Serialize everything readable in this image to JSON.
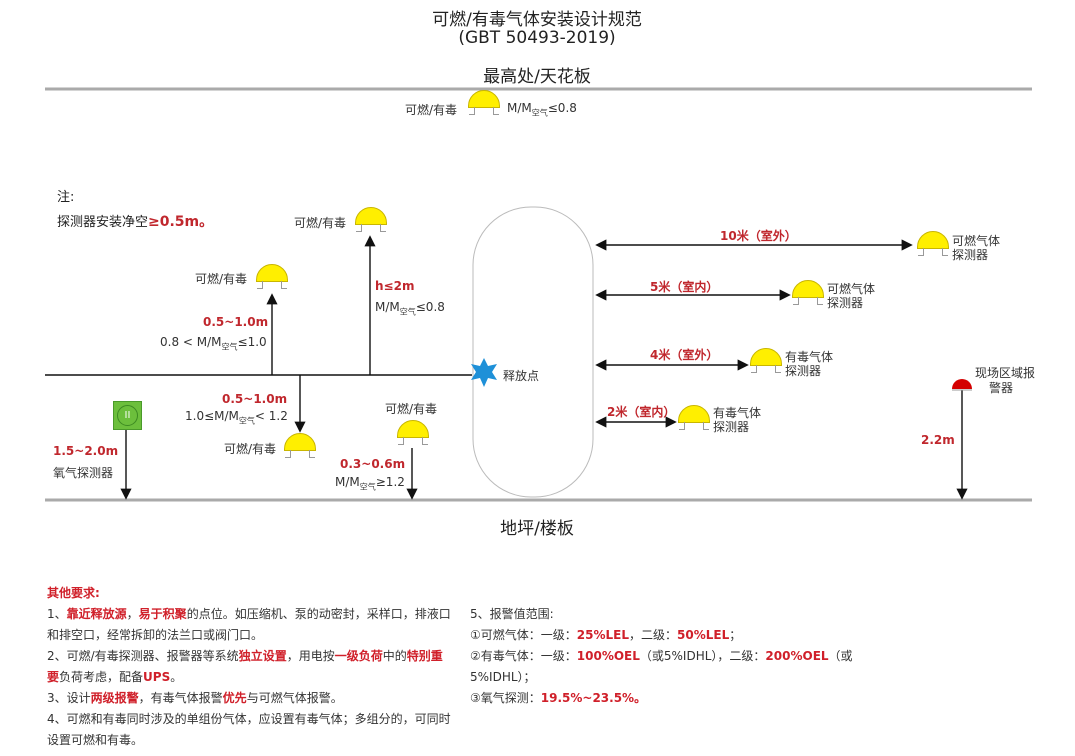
{
  "title": {
    "line1": "可燃/有毒气体安装设计规范",
    "line2": "(GBT 50493-2019)"
  },
  "ceiling_label": "最高处/天花板",
  "floor_label": "地坪/楼板",
  "colors": {
    "detector": "#ffef00",
    "accent_red": "#c0272d",
    "star": "#1e90d8",
    "oxygen": "#6cbf3c",
    "alarm": "#d40000",
    "line": "#999999"
  },
  "top_detector": {
    "label": "可燃/有毒",
    "cond": {
      "pre": "M/M",
      "sub": "空气",
      "post": "≤0.8"
    }
  },
  "note": {
    "head": "注:",
    "text": "探测器安装净空",
    "value": "≥0.5m。"
  },
  "release_point": "释放点",
  "left": {
    "d1": {
      "label": "可燃/有毒",
      "dist": "0.5~1.0m",
      "cond": {
        "pre": "0.8 < M/M",
        "sub": "空气",
        "post": "≤1.0"
      }
    },
    "d2": {
      "label": "可燃/有毒",
      "dist": "h≤2m",
      "cond": {
        "pre": "M/M",
        "sub": "空气",
        "post": "≤0.8"
      }
    },
    "d3": {
      "label": "可燃/有毒",
      "dist": "0.5~1.0m",
      "cond": {
        "pre": "1.0≤M/M",
        "sub": "空气",
        "post": "< 1.2"
      }
    },
    "d4": {
      "label": "可燃/有毒",
      "dist": "0.3~0.6m",
      "cond": {
        "pre": "M/M",
        "sub": "空气",
        "post": "≥1.2"
      }
    },
    "oxygen": {
      "icon_text": "II",
      "dist": "1.5~2.0m",
      "label": "氧气探测器"
    }
  },
  "right": [
    {
      "dist": "10米（室外）",
      "label1": "可燃气体",
      "label2": "探测器"
    },
    {
      "dist": "5米（室内）",
      "label1": "可燃气体",
      "label2": "探测器"
    },
    {
      "dist": "4米（室外）",
      "label1": "有毒气体",
      "label2": "探测器"
    },
    {
      "dist": "2米（室内）",
      "label1": "有毒气体",
      "label2": "探测器"
    }
  ],
  "alarm": {
    "label1": "现场区域报",
    "label2": "警器",
    "height": "2.2m"
  },
  "requirements": {
    "head": "其他要求:",
    "lines": [
      [
        {
          "t": "1、"
        },
        {
          "t": "靠近释放源",
          "red": true
        },
        {
          "t": "，"
        },
        {
          "t": "易于积聚",
          "red": true
        },
        {
          "t": "的点位。如压缩机、泵的动密封，采样口，排液口"
        }
      ],
      [
        {
          "t": "和排空口，经常拆卸的法兰口或阀门口。"
        }
      ],
      [
        {
          "t": "2、可燃/有毒探测器、报警器等系统"
        },
        {
          "t": "独立设置",
          "red": true
        },
        {
          "t": "，用电按"
        },
        {
          "t": "一级负荷",
          "red": true
        },
        {
          "t": "中的"
        },
        {
          "t": "特别重",
          "red": true
        }
      ],
      [
        {
          "t": "要",
          "red": true
        },
        {
          "t": "负荷考虑，配备"
        },
        {
          "t": "UPS",
          "red": true
        },
        {
          "t": "。"
        }
      ],
      [
        {
          "t": "3、设计"
        },
        {
          "t": "两级报警",
          "red": true
        },
        {
          "t": "，有毒气体报警"
        },
        {
          "t": "优先",
          "red": true
        },
        {
          "t": "与可燃气体报警。"
        }
      ],
      [
        {
          "t": "4、可燃和有毒同时涉及的单组份气体，应设置有毒气体；多组分的，可同时"
        }
      ],
      [
        {
          "t": "设置可燃和有毒。"
        }
      ]
    ]
  },
  "alarm_values": {
    "lines": [
      [
        {
          "t": "5、报警值范围:"
        }
      ],
      [
        {
          "t": "①可燃气体：一级："
        },
        {
          "t": "25%LEL",
          "red": true
        },
        {
          "t": "，二级："
        },
        {
          "t": "50%LEL",
          "red": true
        },
        {
          "t": "；"
        }
      ],
      [
        {
          "t": "②有毒气体：一级："
        },
        {
          "t": "100%OEL",
          "red": true
        },
        {
          "t": "（或5%IDHL），二级："
        },
        {
          "t": "200%OEL",
          "red": true
        },
        {
          "t": "（或"
        }
      ],
      [
        {
          "t": "5%IDHL）；"
        }
      ],
      [
        {
          "t": "③氧气探测："
        },
        {
          "t": "19.5%~23.5%。",
          "red": true
        }
      ]
    ]
  }
}
